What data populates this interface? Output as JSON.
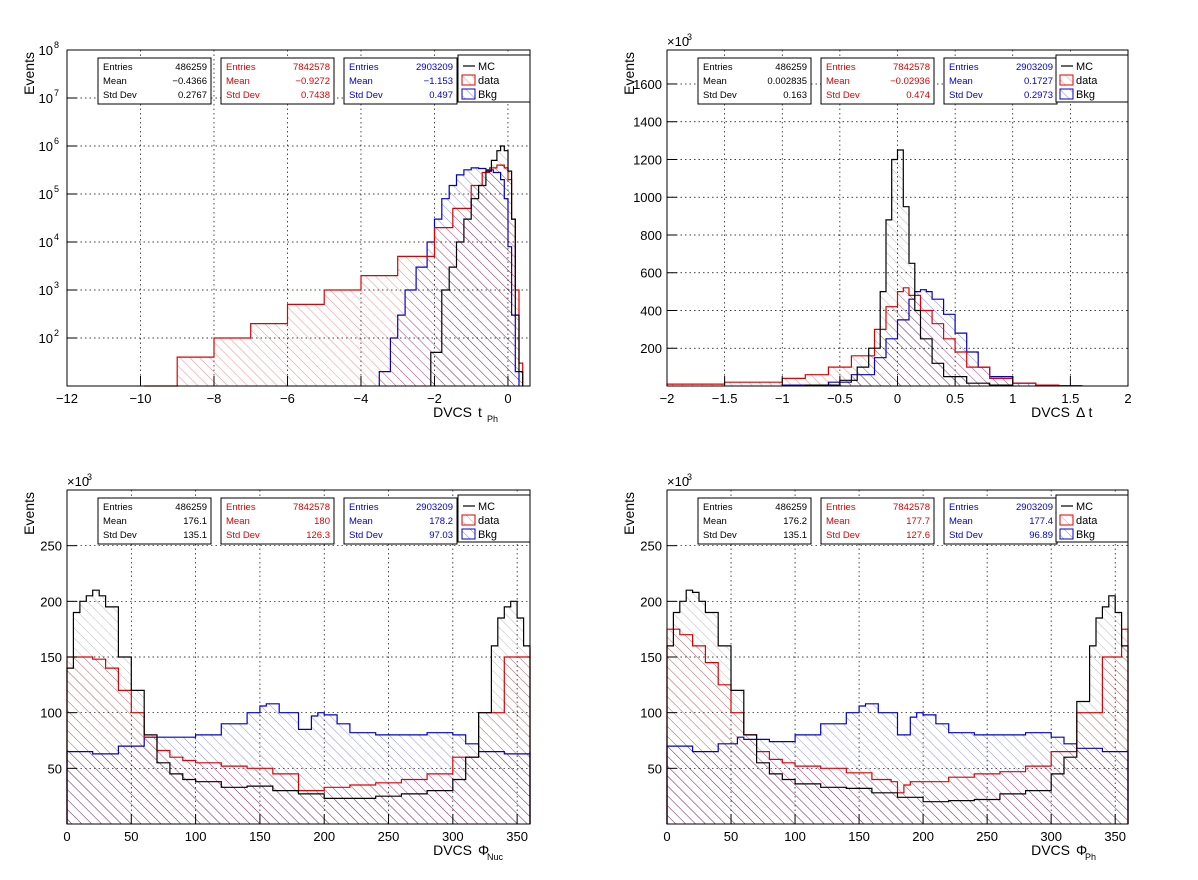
{
  "colors": {
    "mc": "#000000",
    "data": "#e00000",
    "bkg": "#0000cc"
  },
  "chart_data": [
    {
      "type": "histogram",
      "ylabel": "Events",
      "xlabel_main": "DVCS",
      "xlabel_sym": "t",
      "xlabel_sub": "Ph",
      "ylog": true,
      "xlim": [
        -12,
        0.6
      ],
      "ylim": [
        10,
        100000000
      ],
      "xticks": [
        -12,
        -10,
        -8,
        -6,
        -4,
        -2,
        0
      ],
      "xtick_labels": [
        "−12",
        "−10",
        "−8",
        "−6",
        "−4",
        "−2",
        "0"
      ],
      "yticks": [
        100,
        1000,
        10000,
        100000,
        1000000,
        10000000,
        100000000
      ],
      "ytick_exps": [
        "2",
        "3",
        "4",
        "5",
        "6",
        "7",
        "8"
      ],
      "ytick_base": "10",
      "grid": true,
      "legend": {
        "position": "top-right",
        "entries": [
          "MC",
          "data",
          "Bkg"
        ]
      },
      "stats": [
        {
          "entries_label": "Entries",
          "entries": "486259",
          "mean_label": "Mean",
          "mean": "−0.4366",
          "std_label": "Std Dev",
          "std": "0.2767"
        },
        {
          "entries_label": "Entries",
          "entries": "7842578",
          "mean_label": "Mean",
          "mean": "−0.9272",
          "std_label": "Std Dev",
          "std": "0.7438"
        },
        {
          "entries_label": "Entries",
          "entries": "2903209",
          "mean_label": "Mean",
          "mean": "−1.153",
          "std_label": "Std Dev",
          "std": "0.497"
        }
      ],
      "series": [
        {
          "key": "mc",
          "x": [
            -2.1,
            -1.8,
            -1.6,
            -1.4,
            -1.2,
            -1.0,
            -0.8,
            -0.6,
            -0.45,
            -0.3,
            -0.2,
            -0.1,
            0.0,
            0.1,
            0.2,
            0.3
          ],
          "y": [
            50,
            1000,
            3000,
            10000,
            30000,
            80000,
            150000,
            300000,
            500000,
            800000,
            1000000,
            800000,
            300000,
            30000,
            300,
            20
          ]
        },
        {
          "key": "data",
          "x": [
            -9.9,
            -9.0,
            -8.0,
            -7.0,
            -6.0,
            -5.0,
            -4.0,
            -3.0,
            -2.0,
            -1.5,
            -1.0,
            -0.7,
            -0.5,
            -0.3,
            -0.1,
            0.0,
            0.1,
            0.2,
            0.3
          ],
          "y": [
            10,
            40,
            100,
            200,
            500,
            1000,
            2000,
            5000,
            20000,
            50000,
            150000,
            280000,
            350000,
            400000,
            350000,
            200000,
            30000,
            1000,
            30
          ]
        },
        {
          "key": "bkg",
          "x": [
            -3.5,
            -3.2,
            -3.0,
            -2.8,
            -2.5,
            -2.2,
            -2.0,
            -1.8,
            -1.6,
            -1.4,
            -1.2,
            -1.0,
            -0.8,
            -0.6,
            -0.4,
            -0.2,
            -0.1,
            0.0,
            0.1,
            0.2
          ],
          "y": [
            20,
            100,
            300,
            1000,
            3000,
            10000,
            30000,
            80000,
            150000,
            250000,
            320000,
            350000,
            340000,
            320000,
            280000,
            200000,
            80000,
            8000,
            300,
            20
          ]
        }
      ]
    },
    {
      "type": "histogram",
      "ylabel": "Events",
      "xlabel_main": "DVCS",
      "xlabel_sym": "Δ t",
      "xlabel_sub": "",
      "ylog": false,
      "multiplier": "×10",
      "multiplier_exp": "3",
      "xlim": [
        -2,
        2
      ],
      "ylim": [
        0,
        1780
      ],
      "xticks": [
        -2,
        -1.5,
        -1,
        -0.5,
        0,
        0.5,
        1,
        1.5,
        2
      ],
      "xtick_labels": [
        "−2",
        "−1.5",
        "−1",
        "−0.5",
        "0",
        "0.5",
        "1",
        "1.5",
        "2"
      ],
      "yticks": [
        200,
        400,
        600,
        800,
        1000,
        1200,
        1400,
        1600
      ],
      "ytick_labels": [
        "200",
        "400",
        "600",
        "800",
        "1000",
        "1200",
        "1400",
        "1600"
      ],
      "grid": true,
      "legend": {
        "position": "top-right",
        "entries": [
          "MC",
          "data",
          "Bkg"
        ]
      },
      "stats": [
        {
          "entries_label": "Entries",
          "entries": "486259",
          "mean_label": "Mean",
          "mean": "0.002835",
          "std_label": "Std Dev",
          "std": "0.163"
        },
        {
          "entries_label": "Entries",
          "entries": "7842578",
          "mean_label": "Mean",
          "mean": "−0.02936",
          "std_label": "Std Dev",
          "std": "0.474"
        },
        {
          "entries_label": "Entries",
          "entries": "2903209",
          "mean_label": "Mean",
          "mean": "0.1727",
          "std_label": "Std Dev",
          "std": "0.2973"
        }
      ],
      "series": [
        {
          "key": "mc",
          "x": [
            -0.8,
            -0.5,
            -0.35,
            -0.25,
            -0.15,
            -0.1,
            -0.05,
            0.0,
            0.05,
            0.1,
            0.15,
            0.2,
            0.3,
            0.4,
            0.6,
            0.8
          ],
          "y": [
            5,
            30,
            100,
            200,
            500,
            880,
            1200,
            1250,
            950,
            650,
            400,
            250,
            120,
            50,
            15,
            5
          ]
        },
        {
          "key": "data",
          "x": [
            -2.0,
            -1.5,
            -1.0,
            -0.8,
            -0.6,
            -0.4,
            -0.2,
            -0.1,
            0.0,
            0.05,
            0.1,
            0.2,
            0.3,
            0.4,
            0.5,
            0.6,
            0.8,
            1.0,
            1.2,
            1.4
          ],
          "y": [
            10,
            20,
            40,
            60,
            100,
            160,
            300,
            420,
            500,
            520,
            480,
            400,
            330,
            250,
            180,
            100,
            40,
            15,
            5,
            2
          ]
        },
        {
          "key": "bkg",
          "x": [
            -1.0,
            -0.6,
            -0.4,
            -0.2,
            -0.1,
            0.0,
            0.1,
            0.15,
            0.2,
            0.25,
            0.3,
            0.4,
            0.5,
            0.6,
            0.7,
            0.8,
            1.0,
            1.2,
            1.4
          ],
          "y": [
            5,
            20,
            60,
            150,
            250,
            350,
            460,
            500,
            510,
            500,
            460,
            380,
            280,
            180,
            100,
            50,
            15,
            5,
            2
          ]
        }
      ]
    },
    {
      "type": "histogram",
      "ylabel": "Events",
      "xlabel_main": "DVCS",
      "xlabel_sym": "Φ",
      "xlabel_sub": "Nuc",
      "ylog": false,
      "multiplier": "×10",
      "multiplier_exp": "3",
      "xlim": [
        0,
        360
      ],
      "ylim": [
        0,
        300
      ],
      "xticks": [
        0,
        50,
        100,
        150,
        200,
        250,
        300,
        350
      ],
      "xtick_labels": [
        "0",
        "50",
        "100",
        "150",
        "200",
        "250",
        "300",
        "350"
      ],
      "yticks": [
        50,
        100,
        150,
        200,
        250
      ],
      "ytick_labels": [
        "50",
        "100",
        "150",
        "200",
        "250"
      ],
      "grid": true,
      "legend": {
        "position": "top-right",
        "entries": [
          "MC",
          "data",
          "Bkg"
        ]
      },
      "stats": [
        {
          "entries_label": "Entries",
          "entries": "486259",
          "mean_label": "Mean",
          "mean": "176.1",
          "std_label": "Std Dev",
          "std": "135.1"
        },
        {
          "entries_label": "Entries",
          "entries": "7842578",
          "mean_label": "Mean",
          "mean": "180",
          "std_label": "Std Dev",
          "std": "126.3"
        },
        {
          "entries_label": "Entries",
          "entries": "2903209",
          "mean_label": "Mean",
          "mean": "178.2",
          "std_label": "Std Dev",
          "std": "97.03"
        }
      ],
      "series": [
        {
          "key": "mc",
          "x": [
            0,
            5,
            10,
            15,
            20,
            25,
            30,
            40,
            50,
            60,
            70,
            80,
            90,
            100,
            120,
            140,
            160,
            180,
            200,
            220,
            240,
            260,
            280,
            300,
            310,
            320,
            330,
            335,
            340,
            345,
            350,
            355,
            360
          ],
          "y": [
            140,
            190,
            200,
            205,
            210,
            205,
            195,
            150,
            120,
            80,
            55,
            45,
            40,
            38,
            33,
            34,
            30,
            27,
            23,
            23,
            25,
            27,
            30,
            40,
            60,
            100,
            160,
            185,
            195,
            200,
            185,
            160,
            140
          ]
        },
        {
          "key": "data",
          "x": [
            0,
            20,
            30,
            40,
            50,
            60,
            70,
            80,
            90,
            100,
            120,
            140,
            160,
            180,
            200,
            220,
            240,
            260,
            280,
            300,
            320,
            340,
            360
          ],
          "y": [
            150,
            148,
            140,
            120,
            100,
            78,
            66,
            60,
            57,
            55,
            52,
            50,
            45,
            30,
            33,
            35,
            37,
            40,
            45,
            60,
            100,
            150,
            158
          ]
        },
        {
          "key": "bkg",
          "x": [
            0,
            20,
            40,
            60,
            80,
            100,
            120,
            140,
            150,
            155,
            165,
            180,
            190,
            195,
            200,
            210,
            220,
            240,
            260,
            280,
            300,
            310,
            320,
            340,
            360
          ],
          "y": [
            65,
            63,
            70,
            78,
            78,
            80,
            90,
            100,
            106,
            108,
            100,
            85,
            97,
            100,
            98,
            90,
            82,
            80,
            80,
            82,
            80,
            72,
            65,
            63,
            65
          ]
        }
      ]
    },
    {
      "type": "histogram",
      "ylabel": "Events",
      "xlabel_main": "DVCS",
      "xlabel_sym": "Φ",
      "xlabel_sub": "Ph",
      "ylog": false,
      "multiplier": "×10",
      "multiplier_exp": "3",
      "xlim": [
        0,
        360
      ],
      "ylim": [
        0,
        300
      ],
      "xticks": [
        0,
        50,
        100,
        150,
        200,
        250,
        300,
        350
      ],
      "xtick_labels": [
        "0",
        "50",
        "100",
        "150",
        "200",
        "250",
        "300",
        "350"
      ],
      "yticks": [
        50,
        100,
        150,
        200,
        250
      ],
      "ytick_labels": [
        "50",
        "100",
        "150",
        "200",
        "250"
      ],
      "grid": true,
      "legend": {
        "position": "top-right",
        "entries": [
          "MC",
          "data",
          "Bkg"
        ]
      },
      "stats": [
        {
          "entries_label": "Entries",
          "entries": "486259",
          "mean_label": "Mean",
          "mean": "176.2",
          "std_label": "Std Dev",
          "std": "135.1"
        },
        {
          "entries_label": "Entries",
          "entries": "7842578",
          "mean_label": "Mean",
          "mean": "177.7",
          "std_label": "Std Dev",
          "std": "127.6"
        },
        {
          "entries_label": "Entries",
          "entries": "2903209",
          "mean_label": "Mean",
          "mean": "177.4",
          "std_label": "Std Dev",
          "std": "96.89"
        }
      ],
      "series": [
        {
          "key": "mc",
          "x": [
            0,
            5,
            10,
            15,
            20,
            25,
            30,
            40,
            50,
            60,
            70,
            80,
            90,
            100,
            120,
            140,
            160,
            180,
            200,
            220,
            240,
            260,
            280,
            300,
            310,
            320,
            330,
            335,
            340,
            345,
            350,
            355,
            360
          ],
          "y": [
            160,
            190,
            200,
            210,
            208,
            200,
            190,
            160,
            120,
            80,
            55,
            45,
            40,
            36,
            33,
            32,
            28,
            24,
            20,
            21,
            22,
            27,
            30,
            45,
            60,
            110,
            160,
            185,
            195,
            205,
            190,
            160,
            135
          ]
        },
        {
          "key": "data",
          "x": [
            0,
            10,
            20,
            30,
            40,
            50,
            60,
            70,
            80,
            90,
            100,
            120,
            140,
            160,
            175,
            180,
            185,
            190,
            200,
            220,
            240,
            260,
            280,
            300,
            320,
            340,
            355,
            360
          ],
          "y": [
            175,
            170,
            160,
            145,
            125,
            100,
            80,
            65,
            58,
            55,
            52,
            50,
            46,
            40,
            38,
            28,
            35,
            38,
            38,
            42,
            45,
            47,
            52,
            65,
            100,
            150,
            175,
            140
          ]
        },
        {
          "key": "bkg",
          "x": [
            0,
            20,
            40,
            55,
            60,
            80,
            100,
            120,
            140,
            150,
            155,
            165,
            180,
            190,
            195,
            200,
            210,
            220,
            240,
            260,
            280,
            300,
            310,
            320,
            340,
            360
          ],
          "y": [
            70,
            65,
            72,
            78,
            76,
            74,
            80,
            90,
            100,
            106,
            108,
            100,
            80,
            96,
            100,
            98,
            90,
            82,
            80,
            80,
            82,
            78,
            72,
            68,
            65,
            58
          ]
        }
      ]
    }
  ]
}
